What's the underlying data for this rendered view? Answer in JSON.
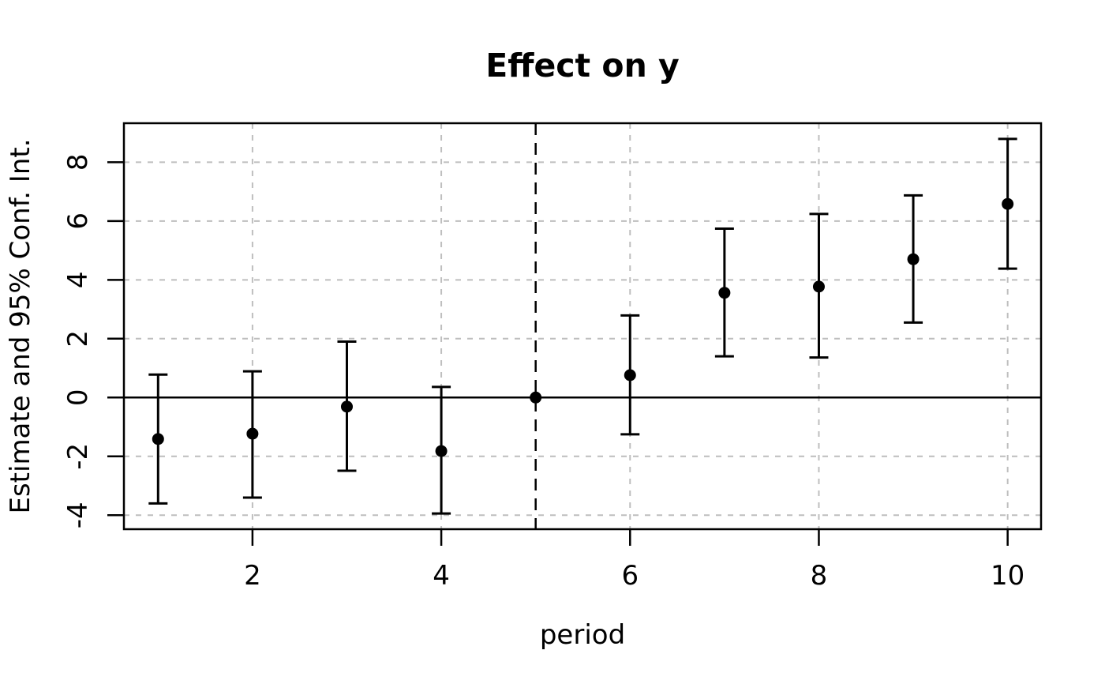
{
  "chart_data": {
    "type": "scatter",
    "title": "Effect on y",
    "xlabel": "period",
    "ylabel": "Estimate and 95% Conf. Int.",
    "x": [
      1,
      2,
      3,
      4,
      5,
      6,
      7,
      8,
      9,
      10
    ],
    "series": [
      {
        "name": "estimate",
        "values": [
          -1.41,
          -1.23,
          -0.31,
          -1.82,
          0,
          0.76,
          3.56,
          3.77,
          4.7,
          6.58
        ]
      },
      {
        "name": "ci_lower",
        "values": [
          -3.6,
          -3.4,
          -2.49,
          -3.94,
          0,
          -1.25,
          1.4,
          1.36,
          2.55,
          4.38
        ]
      },
      {
        "name": "ci_upper",
        "values": [
          0.78,
          0.89,
          1.9,
          0.36,
          0,
          2.79,
          5.74,
          6.24,
          6.87,
          8.79
        ]
      }
    ],
    "reference_period": 5,
    "reference_hline_y": 0,
    "reference_vline_x": 5,
    "x_ticks": [
      "2",
      "4",
      "6",
      "8",
      "10"
    ],
    "x_tick_values": [
      2,
      4,
      6,
      8,
      10
    ],
    "y_ticks": [
      "-4",
      "-2",
      "0",
      "2",
      "4",
      "6",
      "8"
    ],
    "y_tick_values": [
      -4,
      -2,
      0,
      2,
      4,
      6,
      8
    ],
    "xlim": [
      0.638,
      10.354
    ],
    "ylim": [
      -4.475,
      9.324
    ],
    "grid": "dotted",
    "legend": "none",
    "colors": {
      "point": "#000000",
      "error_bar": "#000000",
      "grid": "#bebebe",
      "axis": "#000000",
      "background": "#ffffff"
    }
  }
}
